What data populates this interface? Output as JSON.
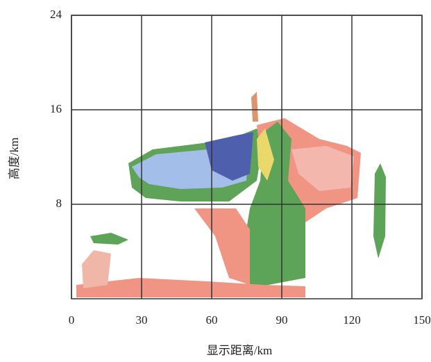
{
  "chart_data": {
    "type": "radar-rhi",
    "x_label": "显示距离/km",
    "y_label": "高度/km",
    "xlim": [
      0,
      150
    ],
    "xticks": [
      0,
      30,
      60,
      90,
      120,
      150
    ],
    "ylim": [
      0,
      24
    ],
    "yticks": [
      8,
      16,
      24
    ],
    "grid": true
  }
}
